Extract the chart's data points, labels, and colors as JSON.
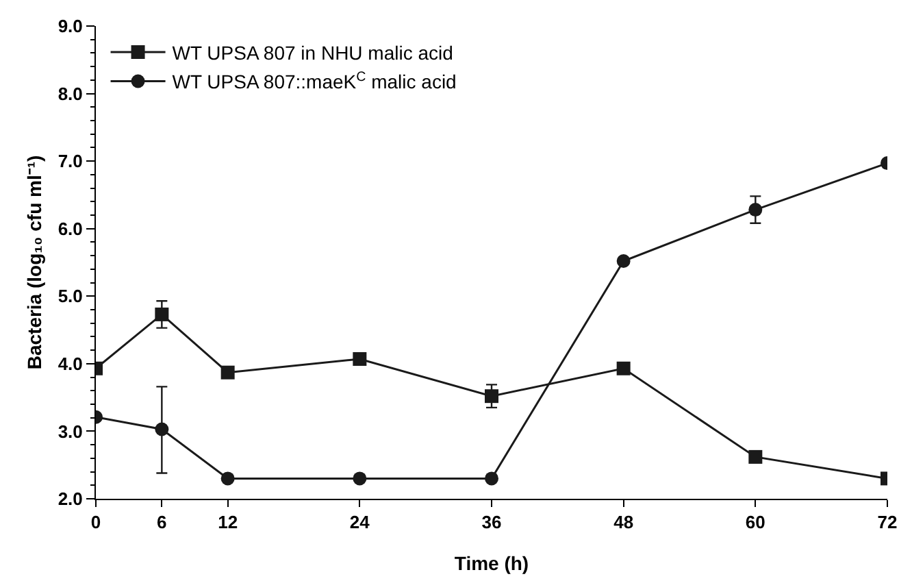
{
  "chart_data": {
    "type": "line",
    "xlabel": "Time (h)",
    "ylabel": "Bacteria (log₁₀ cfu ml⁻¹)",
    "x": [
      0,
      6,
      12,
      24,
      36,
      48,
      60,
      72
    ],
    "xlim": [
      0,
      72
    ],
    "xticks": [
      0,
      6,
      12,
      24,
      36,
      48,
      60,
      72
    ],
    "ylim": [
      2,
      9
    ],
    "yticks": [
      {
        "value": 2,
        "label": "2.0"
      },
      {
        "value": 3,
        "label": "3.0"
      },
      {
        "value": 4,
        "label": "4.0"
      },
      {
        "value": 5,
        "label": "5.0"
      },
      {
        "value": 6,
        "label": "6.0"
      },
      {
        "value": 7,
        "label": "7.0"
      },
      {
        "value": 8,
        "label": "8.0"
      },
      {
        "value": 9,
        "label": "9.0"
      }
    ],
    "grid": false,
    "legend": "top left",
    "series": [
      {
        "name": "WT UPSA 807 in NHU malic acid",
        "color": "#1a1a1a",
        "marker": "square",
        "values": [
          3.93,
          4.73,
          3.87,
          4.07,
          3.52,
          3.93,
          2.62,
          2.3
        ],
        "errors": [
          null,
          0.2,
          null,
          null,
          0.17,
          null,
          null,
          null
        ]
      },
      {
        "name": "WT UPSA 807::maeK$^{C}$ malic acid",
        "color": "#1a1a1a",
        "marker": "circle",
        "values": [
          3.21,
          3.03,
          2.3,
          2.3,
          2.3,
          5.52,
          6.28,
          6.97
        ],
        "errors": [
          null,
          [
            2.38,
            3.66
          ],
          null,
          null,
          null,
          null,
          0.2,
          null
        ]
      }
    ]
  }
}
